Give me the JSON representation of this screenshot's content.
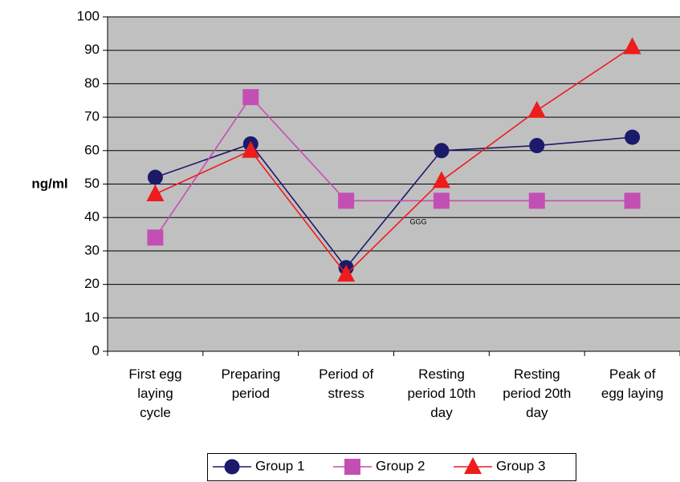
{
  "chart_data": {
    "type": "line",
    "ylabel": "ng/ml",
    "annotation": "GGG",
    "categories": [
      "First egg\nlaying\ncycle",
      "Preparing\nperiod",
      "Period of\nstress",
      "Resting\nperiod 10th\nday",
      "Resting\nperiod 20th\nday",
      "Peak of\negg laying"
    ],
    "series": [
      {
        "name": "Group 1",
        "color": "#1c1a6b",
        "marker": "circle",
        "values": [
          52,
          62,
          25,
          60,
          61.5,
          64
        ]
      },
      {
        "name": "Group 2",
        "color": "#c44fb4",
        "marker": "square",
        "values": [
          34,
          76,
          45,
          45,
          45,
          45
        ]
      },
      {
        "name": "Group 3",
        "color": "#ee1c1c",
        "marker": "triangle",
        "values": [
          47,
          60,
          23,
          51,
          72,
          91
        ]
      }
    ],
    "ylim": [
      0,
      100
    ],
    "yticks": [
      0,
      10,
      20,
      30,
      40,
      50,
      60,
      70,
      80,
      90,
      100
    ],
    "grid": true,
    "background": "#c0c0c0",
    "legend": "bottom"
  }
}
